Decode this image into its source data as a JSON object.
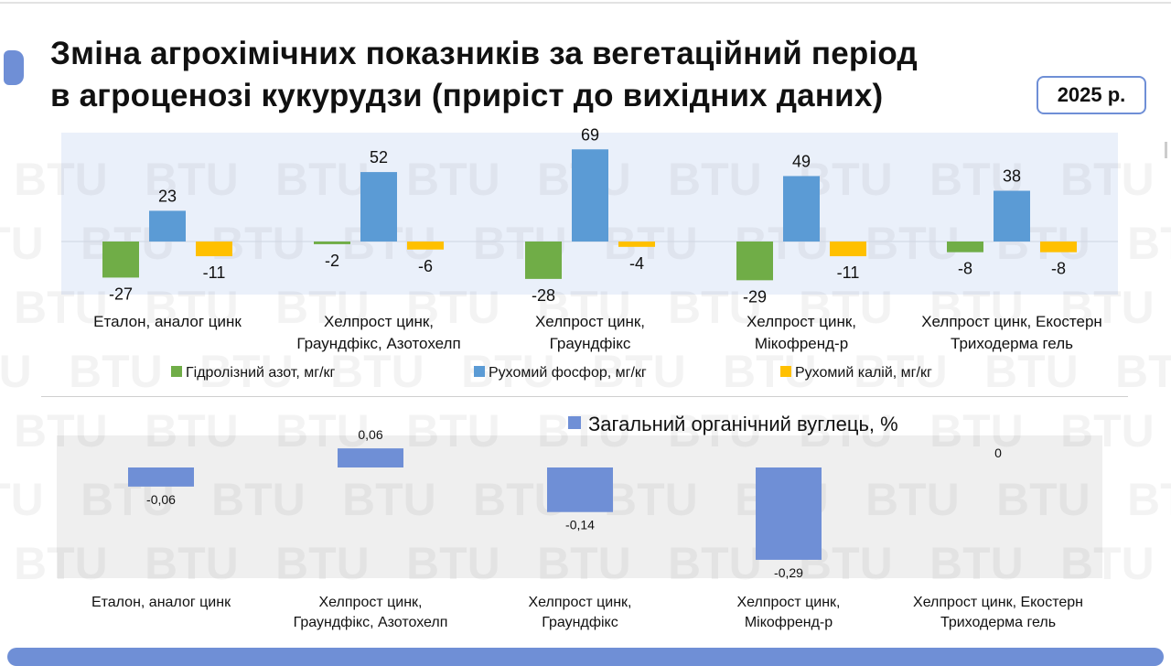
{
  "slide": {
    "title_line1": "Зміна агрохімічних показників за вегетаційний період",
    "title_line2": "в агроценозі кукурудзи (приріст до вихідних даних)",
    "year_badge": "2025 р.",
    "watermark": "BTU",
    "accent_color": "#6f8fd6"
  },
  "chart_data": [
    {
      "type": "bar",
      "categories": [
        [
          "Еталон, аналог цинк"
        ],
        [
          "Хелпрост цинк,",
          "Граундфікс, Азотохелп"
        ],
        [
          "Хелпрост цинк,",
          "Граундфікс"
        ],
        [
          "Хелпрост цинк,",
          "Мікофренд-р"
        ],
        [
          "Хелпрост цинк, Екостерн",
          "Триходерма гель"
        ]
      ],
      "series": [
        {
          "name": "Гідролізний азот, мг/кг",
          "color": "#70ad47",
          "values": [
            -27,
            -2,
            -28,
            -29,
            -8
          ]
        },
        {
          "name": "Рухомий фосфор, мг/кг",
          "color": "#5b9bd5",
          "values": [
            23,
            52,
            69,
            49,
            38
          ]
        },
        {
          "name": "Рухомий калій, мг/кг",
          "color": "#ffc000",
          "values": [
            -11,
            -6,
            -4,
            -11,
            -8
          ]
        }
      ],
      "legend": "bottom",
      "grid": false,
      "ylim": [
        -40,
        81
      ]
    },
    {
      "type": "bar",
      "categories": [
        [
          "Еталон, аналог цинк"
        ],
        [
          "Хелпрост цинк,",
          "Граундфікс, Азотохелп"
        ],
        [
          "Хелпрост цинк,",
          "Граундфікс"
        ],
        [
          "Хелпрост цинк,",
          "Мікофренд-р"
        ],
        [
          "Хелпрост цинк, Екостерн",
          "Триходерма гель"
        ]
      ],
      "series": [
        {
          "name": "Загальний органічний вуглець, %",
          "color": "#6f8fd6",
          "values": [
            -0.06,
            0.06,
            -0.14,
            -0.29,
            0
          ],
          "labels": [
            "-0,06",
            "0,06",
            "-0,14",
            "-0,29",
            "0"
          ]
        }
      ],
      "legend": "top",
      "grid": false,
      "ylim": [
        -0.35,
        0.1
      ]
    }
  ]
}
